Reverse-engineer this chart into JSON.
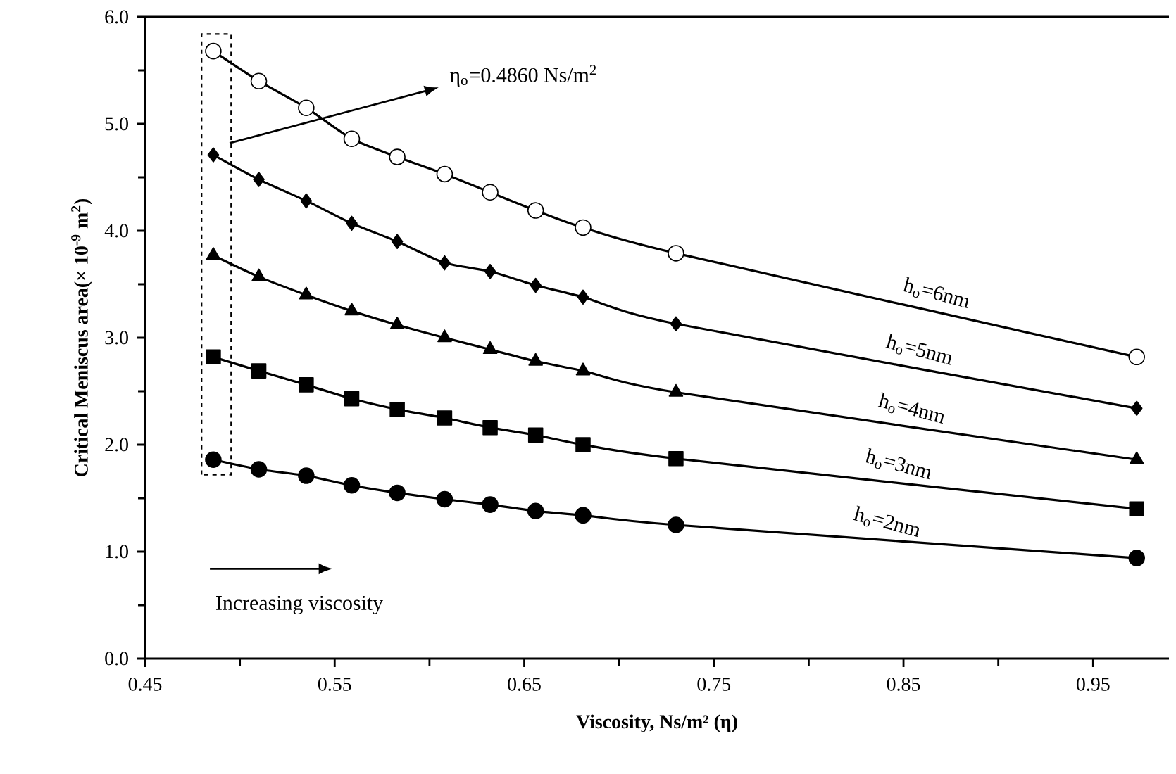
{
  "chart_data": {
    "type": "line",
    "xlabel": "Viscosity, Ns/m² (η)",
    "ylabel": "Critical  Meniscus area(× 10$^{-9}$ m$^{2}$)",
    "x": [
      0.486,
      0.51,
      0.535,
      0.559,
      0.583,
      0.608,
      0.632,
      0.656,
      0.681,
      0.73,
      0.973
    ],
    "series": [
      {
        "color": "#ffffff",
        "marker": "circle",
        "values": [
          5.68,
          5.4,
          5.15,
          4.86,
          4.69,
          4.53,
          4.36,
          4.19,
          4.03,
          3.79,
          2.82
        ]
      },
      {
        "color": "#000000",
        "marker": "diamond",
        "values": [
          4.71,
          4.48,
          4.28,
          4.07,
          3.9,
          3.7,
          3.62,
          3.49,
          3.38,
          3.13,
          2.34
        ]
      },
      {
        "color": "#000000",
        "marker": "triangle",
        "values": [
          3.77,
          3.57,
          3.4,
          3.25,
          3.12,
          3.0,
          2.89,
          2.78,
          2.69,
          2.49,
          1.86
        ]
      },
      {
        "color": "#000000",
        "marker": "square",
        "values": [
          2.82,
          2.69,
          2.56,
          2.43,
          2.33,
          2.25,
          2.16,
          2.09,
          2.0,
          1.87,
          1.4
        ]
      },
      {
        "color": "#000000",
        "marker": "circle",
        "values": [
          1.86,
          1.77,
          1.71,
          1.62,
          1.55,
          1.49,
          1.44,
          1.38,
          1.34,
          1.25,
          0.94
        ]
      }
    ],
    "xlim": [
      0.45,
      0.99
    ],
    "xticks": [
      0.45,
      {
        "value": 0.5,
        "label": null
      },
      0.55,
      {
        "value": 0.6,
        "label": null
      },
      0.65,
      {
        "value": 0.7,
        "label": null
      },
      0.75,
      {
        "value": 0.8,
        "label": null
      },
      0.85,
      {
        "value": 0.9,
        "label": null
      },
      0.95
    ],
    "ylim": [
      0,
      6
    ],
    "yticks": [
      {
        "value": 0,
        "label": "0.0"
      },
      {
        "value": 0.5,
        "label": null
      },
      {
        "value": 1,
        "label": "1.0"
      },
      {
        "value": 1.5,
        "label": null
      },
      {
        "value": 2,
        "label": "2.0"
      },
      {
        "value": 2.5,
        "label": null
      },
      {
        "value": 3,
        "label": "3.0"
      },
      {
        "value": 3.5,
        "label": null
      },
      {
        "value": 4,
        "label": "4.0"
      },
      {
        "value": 4.5,
        "label": null
      },
      {
        "value": 5,
        "label": "5.0"
      },
      {
        "value": 5.5,
        "label": null
      },
      {
        "value": 6,
        "label": "6.0"
      }
    ],
    "line_style": "solid",
    "annotations": [
      "η$_{o}$=0.4860 Ns/m$^{2}$",
      "Increasing viscosity",
      {
        "text": "h$_{o}$=6nm",
        "x": 0.865,
        "y": 3.25
      },
      {
        "text": "h$_{o}$=5nm",
        "x": 0.856,
        "y": 2.72
      },
      {
        "text": "h$_{o}$=4nm",
        "x": 0.852,
        "y": 2.17
      },
      {
        "text": "h$_{o}$=3nm",
        "x": 0.845,
        "y": 1.65
      },
      {
        "text": "h$_{o}$=2nm",
        "x": 0.839,
        "y": 1.11
      }
    ]
  }
}
